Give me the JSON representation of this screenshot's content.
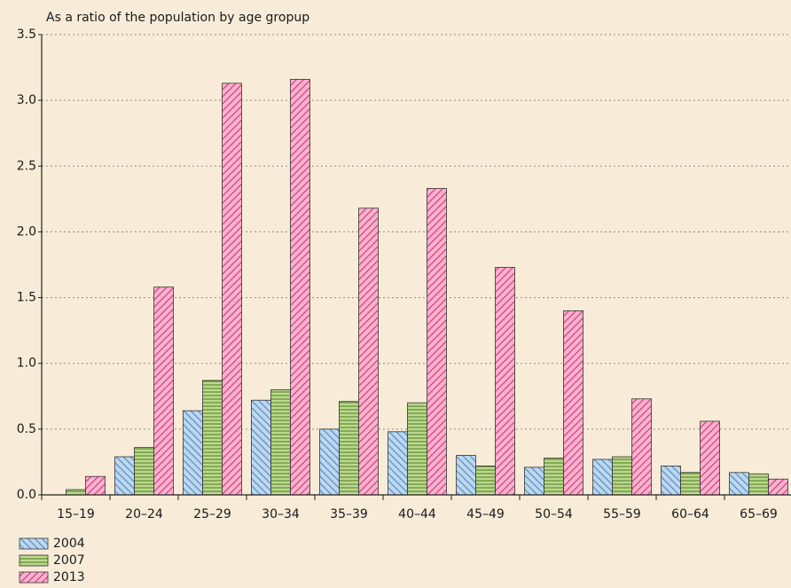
{
  "chart_data": {
    "type": "bar",
    "title": "As a ratio of the population by age gropup",
    "categories": [
      "15–19",
      "20–24",
      "25–29",
      "30–34",
      "35–39",
      "40–44",
      "45–49",
      "50–54",
      "55–59",
      "60–64",
      "65–69"
    ],
    "series": [
      {
        "name": "2004",
        "color": "#bcd7ee",
        "hatch_color": "#4f86c0",
        "hatch": "diagonal-back",
        "values": [
          0,
          0.29,
          0.64,
          0.72,
          0.5,
          0.48,
          0.3,
          0.21,
          0.27,
          0.22,
          0.17
        ]
      },
      {
        "name": "2007",
        "color": "#bcd88f",
        "hatch_color": "#4e7d1e",
        "hatch": "horizontal",
        "values": [
          0.04,
          0.36,
          0.87,
          0.8,
          0.71,
          0.7,
          0.22,
          0.28,
          0.29,
          0.17,
          0.16
        ]
      },
      {
        "name": "2013",
        "color": "#f7b3cf",
        "hatch_color": "#d9306f",
        "hatch": "diagonal",
        "values": [
          0.14,
          1.58,
          3.13,
          3.16,
          2.18,
          2.33,
          1.73,
          1.4,
          0.73,
          0.56,
          0.12
        ]
      }
    ],
    "ylim": [
      0,
      3.5
    ],
    "yticks": [
      {
        "value": 0,
        "label": "0.0"
      },
      0.5,
      {
        "value": 1,
        "label": "1.0"
      },
      1.5,
      {
        "value": 2,
        "label": "2.0"
      },
      2.5,
      {
        "value": 3,
        "label": "3.0"
      },
      3.5
    ],
    "grid": true
  }
}
